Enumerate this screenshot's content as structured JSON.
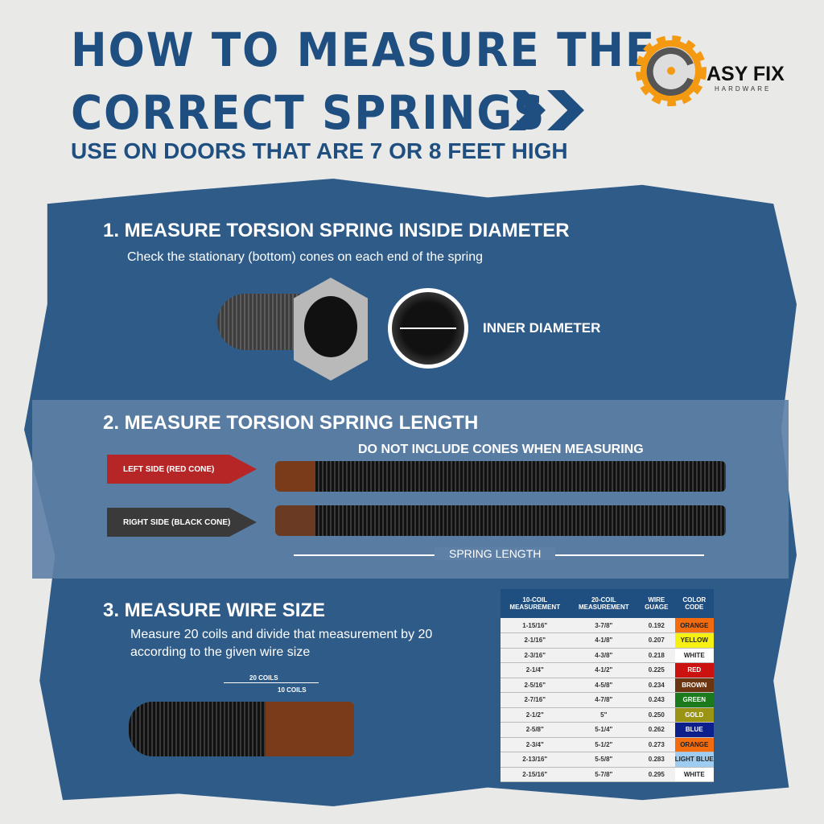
{
  "title": {
    "line1": "HOW TO MEASURE THE",
    "line2": "CORRECT SPRINGS",
    "subtitle": "USE ON DOORS THAT ARE 7 OR 8 FEET HIGH"
  },
  "logo": {
    "name": "ASY FIX",
    "tagline": "HARDWARE",
    "text": "EASY FIX HARDWARE"
  },
  "step1": {
    "heading": "1. MEASURE TORSION SPRING INSIDE DIAMETER",
    "text": "Check the stationary (bottom) cones on each end of the spring",
    "label": "INNER DIAMETER"
  },
  "step2": {
    "heading": "2. MEASURE TORSION SPRING LENGTH",
    "note": "DO NOT INCLUDE CONES WHEN MEASURING",
    "left": "LEFT SIDE (RED CONE)",
    "right": "RIGHT SIDE (BLACK CONE)",
    "length": "SPRING LENGTH"
  },
  "step3": {
    "heading": "3. MEASURE WIRE SIZE",
    "text": "Measure 20 coils and divide that measurement by 20 according to the given wire size",
    "c20": "20 COILS",
    "c10": "10 COILS"
  },
  "table": {
    "headers": [
      "10-COIL MEASUREMENT",
      "20-COIL MEASUREMENT",
      "WIRE GUAGE",
      "COLOR CODE"
    ],
    "rows": [
      [
        "1-15/16\"",
        "3-7/8\"",
        "0.192",
        "ORANGE",
        "#f26b0f"
      ],
      [
        "2-1/16\"",
        "4-1/8\"",
        "0.207",
        "YELLOW",
        "#f7f013"
      ],
      [
        "2-3/16\"",
        "4-3/8\"",
        "0.218",
        "WHITE",
        "#ffffff"
      ],
      [
        "2-1/4\"",
        "4-1/2\"",
        "0.225",
        "RED",
        "#cc1111"
      ],
      [
        "2-5/16\"",
        "4-5/8\"",
        "0.234",
        "BROWN",
        "#6a3510"
      ],
      [
        "2-7/16\"",
        "4-7/8\"",
        "0.243",
        "GREEN",
        "#1b7a1b"
      ],
      [
        "2-1/2\"",
        "5\"",
        "0.250",
        "GOLD",
        "#9a9415"
      ],
      [
        "2-5/8\"",
        "5-1/4\"",
        "0.262",
        "BLUE",
        "#0d1f8a"
      ],
      [
        "2-3/4\"",
        "5-1/2\"",
        "0.273",
        "ORANGE",
        "#f26b0f"
      ],
      [
        "2-13/16\"",
        "5-5/8\"",
        "0.283",
        "LIGHT BLUE",
        "#9fcdf2"
      ],
      [
        "2-15/16\"",
        "5-7/8\"",
        "0.295",
        "WHITE",
        "#ffffff"
      ]
    ]
  },
  "colors": {
    "brand_blue": "#1f4f80",
    "panel_blue": "#2f5b88",
    "logo_orange": "#f39a12",
    "red_arrow": "#b62626",
    "dark_arrow": "#3a3a3a"
  }
}
